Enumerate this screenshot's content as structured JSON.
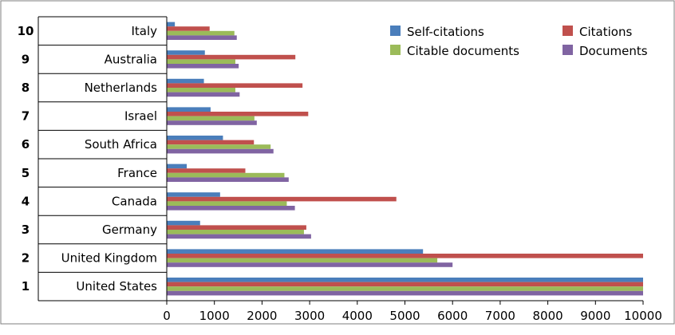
{
  "chart_data": {
    "type": "bar",
    "orientation": "horizontal",
    "title": "",
    "xlabel": "",
    "ylabel": "",
    "xlim": [
      0,
      10000
    ],
    "x_ticks": [
      0,
      1000,
      2000,
      3000,
      4000,
      5000,
      6000,
      7000,
      8000,
      9000,
      10000
    ],
    "x_tick_labels": [
      "0",
      "1000",
      "2000",
      "3000",
      "4000",
      "5000",
      "6000",
      "7000",
      "8000",
      "9000",
      "10000"
    ],
    "grid": false,
    "legend_position": "top-right",
    "categories": [
      {
        "rank": "10",
        "name": "Italy"
      },
      {
        "rank": "9",
        "name": "Australia"
      },
      {
        "rank": "8",
        "name": "Netherlands"
      },
      {
        "rank": "7",
        "name": "Israel"
      },
      {
        "rank": "6",
        "name": "South Africa"
      },
      {
        "rank": "5",
        "name": "France"
      },
      {
        "rank": "4",
        "name": "Canada"
      },
      {
        "rank": "3",
        "name": "Germany"
      },
      {
        "rank": "2",
        "name": "United Kingdom"
      },
      {
        "rank": "1",
        "name": "United States"
      }
    ],
    "series": [
      {
        "name": "Self-citations",
        "color": "#4a7ebb",
        "values": [
          170,
          800,
          780,
          920,
          1180,
          420,
          1120,
          700,
          5380,
          10000
        ]
      },
      {
        "name": "Citations",
        "color": "#c0504d",
        "values": [
          900,
          2700,
          2850,
          2970,
          1830,
          1650,
          4820,
          2930,
          10000,
          10000
        ]
      },
      {
        "name": "Citable documents",
        "color": "#9bbb59",
        "values": [
          1420,
          1440,
          1440,
          1840,
          2180,
          2470,
          2520,
          2880,
          5680,
          10000
        ]
      },
      {
        "name": "Documents",
        "color": "#8064a2",
        "values": [
          1470,
          1510,
          1530,
          1890,
          2240,
          2560,
          2690,
          3030,
          6000,
          10000
        ]
      }
    ]
  }
}
